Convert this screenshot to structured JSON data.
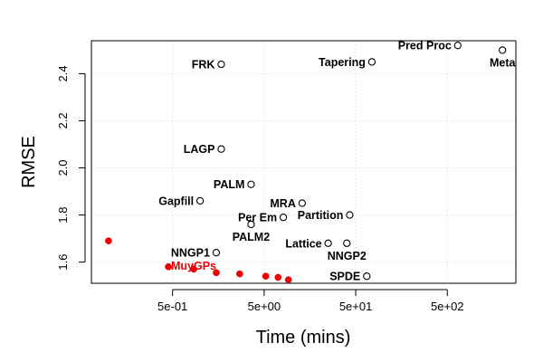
{
  "chart_data": {
    "type": "scatter",
    "title": "",
    "xlabel": "Time (mins)",
    "ylabel": "RMSE",
    "xscale": "log",
    "xlim": [
      0.065,
      2800
    ],
    "ylim": [
      1.51,
      2.54
    ],
    "x_ticks": [
      {
        "value": 0.5,
        "label": "5e-01"
      },
      {
        "value": 5,
        "label": "5e+00"
      },
      {
        "value": 50,
        "label": "5e+01"
      },
      {
        "value": 500,
        "label": "5e+02"
      }
    ],
    "y_ticks": [
      {
        "value": 1.6,
        "label": "1.6"
      },
      {
        "value": 1.8,
        "label": "1.8"
      },
      {
        "value": 2.0,
        "label": "2.0"
      },
      {
        "value": 2.2,
        "label": "2.2"
      },
      {
        "value": 2.4,
        "label": "2.4"
      }
    ],
    "grid": true,
    "colors": {
      "highlight": "#ee0000",
      "default": "#000000",
      "grid": "#d3d3d3"
    },
    "points": [
      {
        "label": "FRK",
        "x": 1.7,
        "y": 2.44,
        "label_pos": "left"
      },
      {
        "label": "Pred Proc",
        "x": 650,
        "y": 2.52,
        "label_pos": "left"
      },
      {
        "label": "Tapering",
        "x": 75,
        "y": 2.45,
        "label_pos": "left"
      },
      {
        "label": "Meta",
        "x": 2000,
        "y": 2.5,
        "label_pos": "below"
      },
      {
        "label": "LAGP",
        "x": 1.7,
        "y": 2.08,
        "label_pos": "left"
      },
      {
        "label": "PALM",
        "x": 3.6,
        "y": 1.93,
        "label_pos": "left"
      },
      {
        "label": "Gapfill",
        "x": 1.0,
        "y": 1.86,
        "label_pos": "left"
      },
      {
        "label": "MRA",
        "x": 13,
        "y": 1.85,
        "label_pos": "left"
      },
      {
        "label": "Per Em",
        "x": 8.1,
        "y": 1.79,
        "label_pos": "left"
      },
      {
        "label": "Partition",
        "x": 43,
        "y": 1.8,
        "label_pos": "left"
      },
      {
        "label": "PALM2",
        "x": 3.6,
        "y": 1.76,
        "label_pos": "below"
      },
      {
        "label": "NNGP1",
        "x": 1.5,
        "y": 1.64,
        "label_pos": "left"
      },
      {
        "label": "Lattice",
        "x": 25,
        "y": 1.68,
        "label_pos": "left"
      },
      {
        "label": "NNGP2",
        "x": 40,
        "y": 1.68,
        "label_pos": "below"
      },
      {
        "label": "SPDE",
        "x": 66,
        "y": 1.54,
        "label_pos": "left"
      }
    ],
    "series": [
      {
        "name": "MuyGPs",
        "name_label_pos": "below",
        "x": [
          0.1,
          0.45,
          0.85,
          1.5,
          2.7,
          5.2,
          7.1,
          9.2
        ],
        "y": [
          1.69,
          1.58,
          1.57,
          1.555,
          1.55,
          1.54,
          1.535,
          1.525
        ]
      }
    ]
  }
}
